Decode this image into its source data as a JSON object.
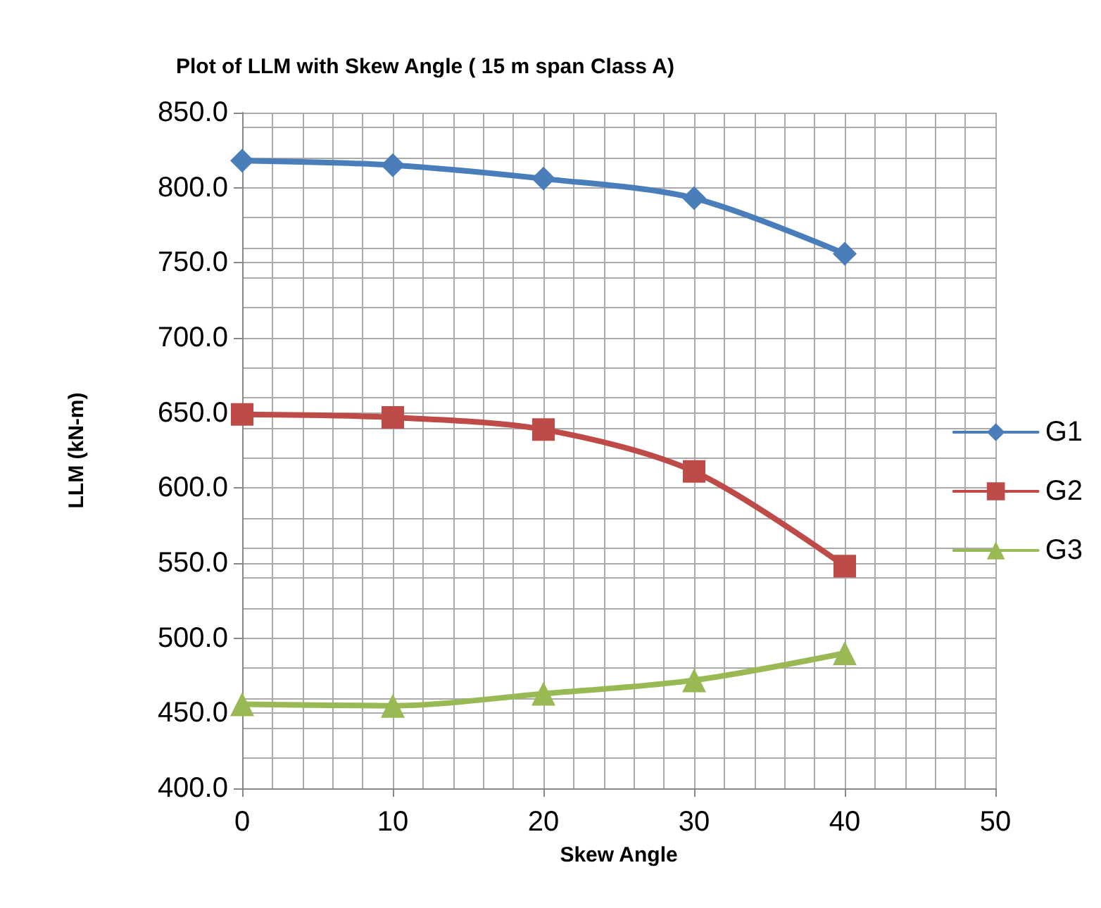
{
  "chart_data": {
    "type": "line",
    "title": "Plot of LLM with Skew Angle ( 15 m span Class A)",
    "xlabel": "Skew Angle",
    "ylabel": "LLM (kN-m)",
    "x": [
      0,
      10,
      20,
      30,
      40
    ],
    "series": [
      {
        "name": "G1",
        "color": "#4a7ebb",
        "marker": "diamond",
        "values": [
          818,
          815,
          806,
          793,
          756
        ]
      },
      {
        "name": "G2",
        "color": "#be4b48",
        "marker": "square",
        "values": [
          649,
          647,
          639,
          611,
          548
        ]
      },
      {
        "name": "G3",
        "color": "#98b954",
        "marker": "triangle",
        "values": [
          456,
          455,
          463,
          472,
          490
        ]
      }
    ],
    "xlim": [
      0,
      50
    ],
    "xticks": [
      0,
      10,
      20,
      30,
      40,
      50
    ],
    "ylim": [
      400,
      850
    ],
    "yticks": [
      {
        "value": 400,
        "label": "400.0"
      },
      {
        "value": 450,
        "label": "450.0"
      },
      {
        "value": 500,
        "label": "500.0"
      },
      {
        "value": 550,
        "label": "550.0"
      },
      {
        "value": 600,
        "label": "600.0"
      },
      {
        "value": 650,
        "label": "650.0"
      },
      {
        "value": 700,
        "label": "700.0"
      },
      {
        "value": 750,
        "label": "750.0"
      },
      {
        "value": 800,
        "label": "800.0"
      },
      {
        "value": 850,
        "label": "850.0"
      }
    ],
    "grid": true,
    "legend": "right",
    "line_style": "solid"
  }
}
